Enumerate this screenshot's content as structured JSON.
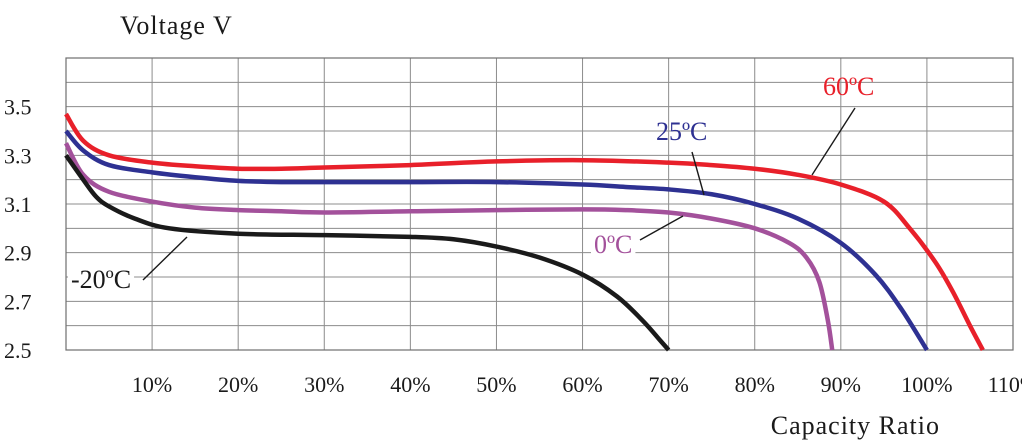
{
  "chart_data": {
    "type": "line",
    "ylabel": "Voltage V",
    "xlabel": "Capacity Ratio",
    "xlim": [
      0,
      110
    ],
    "ylim": [
      2.5,
      3.7
    ],
    "x_ticks": [
      10,
      20,
      30,
      40,
      50,
      60,
      70,
      80,
      90,
      100,
      110
    ],
    "x_tick_labels": [
      "10%",
      "20%",
      "30%",
      "40%",
      "50%",
      "60%",
      "70%",
      "80%",
      "90%",
      "100%",
      "110%"
    ],
    "y_ticks": [
      2.5,
      2.7,
      2.9,
      3.1,
      3.3,
      3.5
    ],
    "y_tick_labels": [
      "2.5",
      "2.7",
      "2.9",
      "3.1",
      "3.3",
      "3.5"
    ],
    "y_grid": [
      2.5,
      2.6,
      2.7,
      2.8,
      2.9,
      3.0,
      3.1,
      3.2,
      3.3,
      3.4,
      3.5,
      3.6,
      3.7
    ],
    "grid": true,
    "series": [
      {
        "name": "60ºC",
        "color": "#e8202a",
        "points": [
          [
            0,
            3.47
          ],
          [
            2,
            3.36
          ],
          [
            5,
            3.3
          ],
          [
            10,
            3.27
          ],
          [
            15,
            3.255
          ],
          [
            20,
            3.245
          ],
          [
            25,
            3.245
          ],
          [
            30,
            3.25
          ],
          [
            40,
            3.26
          ],
          [
            50,
            3.275
          ],
          [
            60,
            3.28
          ],
          [
            70,
            3.27
          ],
          [
            75,
            3.26
          ],
          [
            80,
            3.245
          ],
          [
            85,
            3.22
          ],
          [
            90,
            3.18
          ],
          [
            95,
            3.11
          ],
          [
            98,
            3.0
          ],
          [
            101,
            2.86
          ],
          [
            103,
            2.74
          ],
          [
            105,
            2.6
          ],
          [
            106.5,
            2.5
          ]
        ]
      },
      {
        "name": "25ºC",
        "color": "#2e3192",
        "points": [
          [
            0,
            3.4
          ],
          [
            2,
            3.32
          ],
          [
            5,
            3.26
          ],
          [
            10,
            3.23
          ],
          [
            15,
            3.21
          ],
          [
            20,
            3.195
          ],
          [
            25,
            3.19
          ],
          [
            30,
            3.19
          ],
          [
            40,
            3.19
          ],
          [
            50,
            3.19
          ],
          [
            60,
            3.18
          ],
          [
            65,
            3.17
          ],
          [
            70,
            3.16
          ],
          [
            75,
            3.14
          ],
          [
            80,
            3.1
          ],
          [
            85,
            3.04
          ],
          [
            90,
            2.94
          ],
          [
            94,
            2.81
          ],
          [
            97,
            2.67
          ],
          [
            100,
            2.5
          ]
        ]
      },
      {
        "name": "0ºC",
        "color": "#a3519b",
        "points": [
          [
            0,
            3.35
          ],
          [
            2,
            3.22
          ],
          [
            5,
            3.15
          ],
          [
            10,
            3.11
          ],
          [
            15,
            3.085
          ],
          [
            20,
            3.075
          ],
          [
            25,
            3.07
          ],
          [
            30,
            3.065
          ],
          [
            40,
            3.07
          ],
          [
            50,
            3.075
          ],
          [
            60,
            3.078
          ],
          [
            65,
            3.075
          ],
          [
            70,
            3.065
          ],
          [
            75,
            3.04
          ],
          [
            80,
            3.0
          ],
          [
            84,
            2.94
          ],
          [
            86,
            2.88
          ],
          [
            87.5,
            2.78
          ],
          [
            88.5,
            2.62
          ],
          [
            89,
            2.5
          ]
        ]
      },
      {
        "name": "-20ºC",
        "color": "#1a1a1a",
        "points": [
          [
            0,
            3.3
          ],
          [
            2,
            3.2
          ],
          [
            3.5,
            3.13
          ],
          [
            5,
            3.09
          ],
          [
            8,
            3.04
          ],
          [
            12,
            3.0
          ],
          [
            20,
            2.978
          ],
          [
            30,
            2.972
          ],
          [
            40,
            2.965
          ],
          [
            45,
            2.955
          ],
          [
            50,
            2.925
          ],
          [
            55,
            2.88
          ],
          [
            60,
            2.81
          ],
          [
            64,
            2.72
          ],
          [
            67,
            2.62
          ],
          [
            69,
            2.54
          ],
          [
            70,
            2.5
          ]
        ]
      }
    ],
    "annotations": [
      {
        "text": "60ºC",
        "series": "60ºC"
      },
      {
        "text": "25ºC",
        "series": "25ºC"
      },
      {
        "text": "0ºC",
        "series": "0ºC"
      },
      {
        "text": "-20ºC",
        "series": "-20ºC"
      }
    ]
  }
}
